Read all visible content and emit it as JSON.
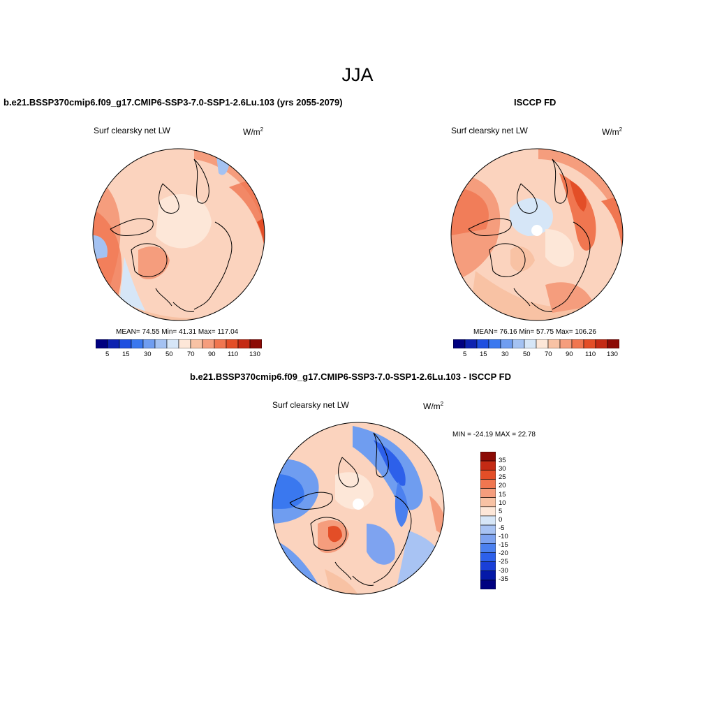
{
  "figure": {
    "title": "JJA",
    "panels": [
      {
        "title": "b.e21.BSSP370cmip6.f09_g17.CMIP6-SSP3-7.0-SSP1-2.6Lu.103 (yrs 2055-2079)",
        "variable": "Surf clearsky net LW",
        "units": "W/m",
        "units_exp": "2",
        "stats": "MEAN=  74.55  Min=  41.31  Max= 117.04"
      },
      {
        "title": "ISCCP FD",
        "variable": "Surf clearsky net LW",
        "units": "W/m",
        "units_exp": "2",
        "stats": "MEAN=  76.16  Min=  57.75  Max= 106.26"
      },
      {
        "title": "b.e21.BSSP370cmip6.f09_g17.CMIP6-SSP3-7.0-SSP1-2.6Lu.103 - ISCCP FD",
        "variable": "Surf clearsky net LW",
        "units": "W/m",
        "units_exp": "2",
        "stats": "MIN = -24.19 MAX =  22.78"
      }
    ]
  },
  "colors": {
    "abs_scale": [
      "#000080",
      "#0d22b0",
      "#1e4fe0",
      "#3a78ef",
      "#6f9df0",
      "#a4c2f2",
      "#d6e6f7",
      "#fde7d8",
      "#f8c2a4",
      "#f59d7d",
      "#f07650",
      "#e34e27",
      "#c42a14",
      "#8c0a05"
    ],
    "diff_scale": [
      "#000080",
      "#0519a8",
      "#1a3fd8",
      "#2d60ea",
      "#4b80ef",
      "#7ea3f0",
      "#a8c3f3",
      "#d6e6f7",
      "#fde7d8",
      "#f8c2a4",
      "#f59d7d",
      "#f07650",
      "#e34e27",
      "#c42a14",
      "#8c0a05"
    ],
    "ocean_base": "#fbd3be",
    "land_outline": "#000000"
  },
  "chart_data": [
    {
      "type": "heatmap",
      "projection": "north-polar-stereographic",
      "title": "b.e21.BSSP370cmip6.f09_g17.CMIP6-SSP3-7.0-SSP1-2.6Lu.103 (yrs 2055-2079)",
      "variable": "Surf clearsky net LW",
      "units": "W/m2",
      "season": "JJA",
      "mean": 74.55,
      "min": 41.31,
      "max": 117.04,
      "colorbar": {
        "orientation": "horizontal",
        "levels": [
          5,
          10,
          15,
          20,
          30,
          40,
          50,
          60,
          70,
          80,
          90,
          100,
          110,
          120,
          130
        ],
        "tick_labels": [
          "5",
          "15",
          "30",
          "50",
          "70",
          "90",
          "110",
          "130"
        ]
      }
    },
    {
      "type": "heatmap",
      "projection": "north-polar-stereographic",
      "title": "ISCCP FD",
      "variable": "Surf clearsky net LW",
      "units": "W/m2",
      "season": "JJA",
      "mean": 76.16,
      "min": 57.75,
      "max": 106.26,
      "colorbar": {
        "orientation": "horizontal",
        "levels": [
          5,
          10,
          15,
          20,
          30,
          40,
          50,
          60,
          70,
          80,
          90,
          100,
          110,
          120,
          130
        ],
        "tick_labels": [
          "5",
          "15",
          "30",
          "50",
          "70",
          "90",
          "110",
          "130"
        ]
      }
    },
    {
      "type": "heatmap",
      "projection": "north-polar-stereographic",
      "title": "b.e21.BSSP370cmip6.f09_g17.CMIP6-SSP3-7.0-SSP1-2.6Lu.103 - ISCCP FD",
      "variable": "Surf clearsky net LW",
      "units": "W/m2",
      "season": "JJA",
      "min": -24.19,
      "max": 22.78,
      "colorbar": {
        "orientation": "vertical",
        "levels": [
          -35,
          -30,
          -25,
          -20,
          -15,
          -10,
          -5,
          0,
          5,
          10,
          15,
          20,
          25,
          30,
          35
        ],
        "tick_labels": [
          "35",
          "30",
          "25",
          "20",
          "15",
          "10",
          "5",
          "0",
          "-5",
          "-10",
          "-15",
          "-20",
          "-25",
          "-30",
          "-35"
        ]
      }
    }
  ]
}
